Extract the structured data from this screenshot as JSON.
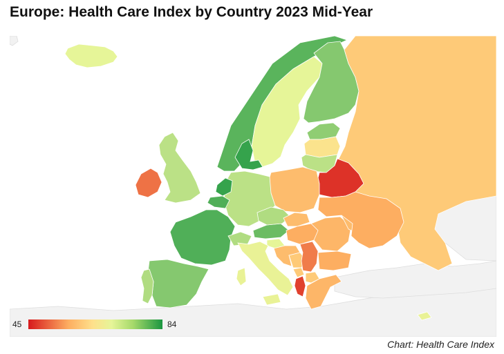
{
  "title": "Europe: Health Care Index by Country 2023 Mid-Year",
  "credit": "Chart: Health Care Index",
  "legend": {
    "min": "45",
    "max": "84"
  },
  "colors": {
    "low": "#d7191c",
    "mid_low": "#fdae61",
    "mid": "#fee08b",
    "mid_high": "#e6f598",
    "high": "#1a9641",
    "no_data": "#f2f2f2"
  },
  "chart_data": {
    "type": "choropleth",
    "metric": "Health Care Index",
    "scale": [
      45,
      84
    ],
    "regions": [
      {
        "id": "iceland",
        "level": 0.62
      },
      {
        "id": "norway",
        "level": 0.88
      },
      {
        "id": "sweden",
        "level": 0.62
      },
      {
        "id": "finland",
        "level": 0.8
      },
      {
        "id": "estonia",
        "level": 0.78
      },
      {
        "id": "latvia",
        "level": 0.5
      },
      {
        "id": "lithuania",
        "level": 0.7
      },
      {
        "id": "russia",
        "level": 0.4
      },
      {
        "id": "belarus",
        "level": 0.05
      },
      {
        "id": "ukraine",
        "level": 0.3
      },
      {
        "id": "poland",
        "level": 0.35
      },
      {
        "id": "germany",
        "level": 0.7
      },
      {
        "id": "denmark",
        "level": 0.95
      },
      {
        "id": "netherlands",
        "level": 0.95
      },
      {
        "id": "belgium",
        "level": 0.9
      },
      {
        "id": "france",
        "level": 0.9
      },
      {
        "id": "uk",
        "level": 0.7
      },
      {
        "id": "ireland",
        "level": 0.18
      },
      {
        "id": "spain",
        "level": 0.8
      },
      {
        "id": "portugal",
        "level": 0.72
      },
      {
        "id": "switzerland",
        "level": 0.72
      },
      {
        "id": "austria",
        "level": 0.85
      },
      {
        "id": "czechia",
        "level": 0.72
      },
      {
        "id": "slovakia",
        "level": 0.35
      },
      {
        "id": "hungary",
        "level": 0.3
      },
      {
        "id": "slovenia",
        "level": 0.62
      },
      {
        "id": "croatia",
        "level": 0.35
      },
      {
        "id": "italy",
        "level": 0.6
      },
      {
        "id": "romania",
        "level": 0.33
      },
      {
        "id": "moldova",
        "level": 0.35
      },
      {
        "id": "serbia",
        "level": 0.2
      },
      {
        "id": "bosnia",
        "level": 0.4
      },
      {
        "id": "montenegro",
        "level": 0.4
      },
      {
        "id": "albania",
        "level": 0.08
      },
      {
        "id": "north-macedonia",
        "level": 0.4
      },
      {
        "id": "bulgaria",
        "level": 0.3
      },
      {
        "id": "greece",
        "level": 0.33
      },
      {
        "id": "cyprus",
        "level": 0.6
      }
    ]
  }
}
